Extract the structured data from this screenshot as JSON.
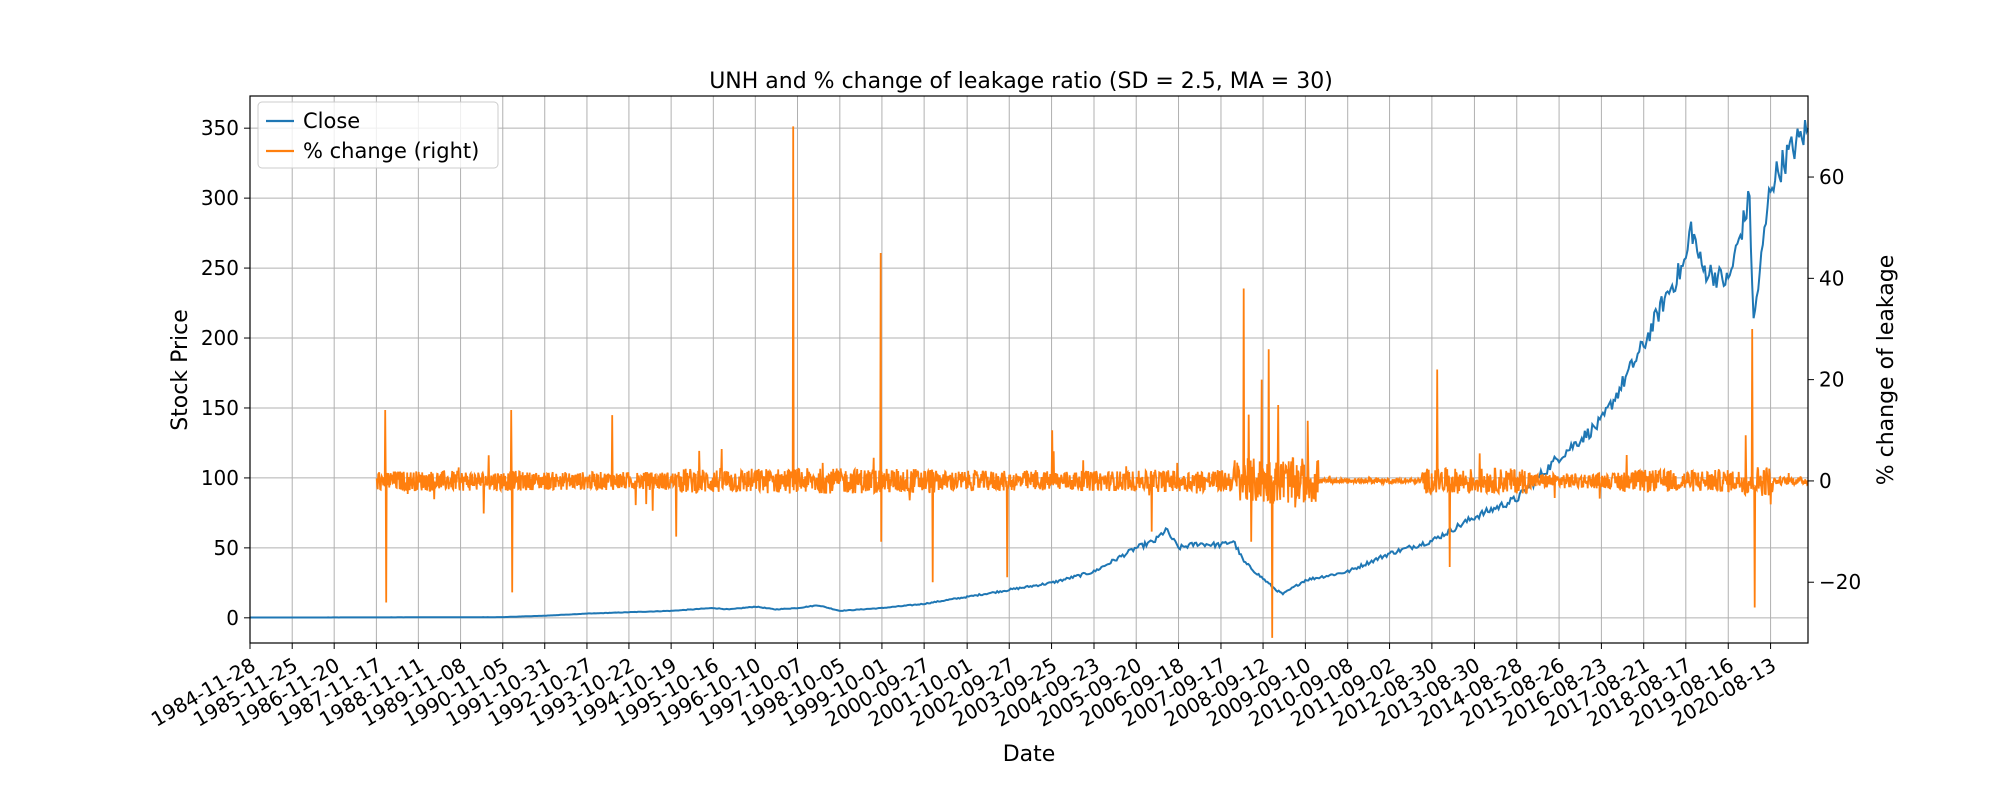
{
  "chart_data": {
    "type": "line",
    "title": "UNH and % change of leakage ratio (SD = 2.5, MA = 30)",
    "xlabel": "Date",
    "ylabel": "Stock Price",
    "ylabel_right": "% change of leakage",
    "grid": true,
    "legend_position": "top-left",
    "x_ticks": [
      "1984-11-28",
      "1985-11-25",
      "1986-11-20",
      "1987-11-17",
      "1988-11-11",
      "1989-11-08",
      "1990-11-05",
      "1991-10-31",
      "1992-10-27",
      "1993-10-22",
      "1994-10-19",
      "1995-10-16",
      "1996-10-10",
      "1997-10-07",
      "1998-10-05",
      "1999-10-01",
      "2000-09-27",
      "2001-10-01",
      "2002-09-27",
      "2003-09-25",
      "2004-09-23",
      "2005-09-20",
      "2006-09-18",
      "2007-09-17",
      "2008-09-12",
      "2009-09-10",
      "2010-09-08",
      "2011-09-02",
      "2012-08-30",
      "2013-08-30",
      "2014-08-28",
      "2015-08-26",
      "2016-08-23",
      "2017-08-21",
      "2018-08-17",
      "2019-08-16",
      "2020-08-13"
    ],
    "xlim": [
      "1984-11-28",
      "2021-06-30"
    ],
    "ylim": [
      -18,
      373
    ],
    "y_ticks": [
      0,
      50,
      100,
      150,
      200,
      250,
      300,
      350
    ],
    "ylim_right": [
      -32,
      76
    ],
    "y_ticks_right": [
      -20,
      0,
      20,
      40,
      60
    ],
    "series": [
      {
        "name": "Close",
        "axis": "left",
        "color": "#1f77b4",
        "points": [
          [
            "1984-11-28",
            0.2
          ],
          [
            "1987-11-17",
            0.3
          ],
          [
            "1990-11-05",
            0.5
          ],
          [
            "1991-10-31",
            1.5
          ],
          [
            "1992-10-27",
            3
          ],
          [
            "1993-10-22",
            4
          ],
          [
            "1994-10-19",
            5
          ],
          [
            "1995-10-16",
            7
          ],
          [
            "1996-03-01",
            6
          ],
          [
            "1996-10-10",
            8
          ],
          [
            "1997-04-01",
            6
          ],
          [
            "1997-10-07",
            7
          ],
          [
            "1998-04-01",
            9
          ],
          [
            "1998-10-05",
            5
          ],
          [
            "1999-10-01",
            7
          ],
          [
            "2000-09-27",
            10
          ],
          [
            "2001-10-01",
            15
          ],
          [
            "2002-09-27",
            20
          ],
          [
            "2003-09-25",
            25
          ],
          [
            "2004-09-23",
            33
          ],
          [
            "2005-09-20",
            50
          ],
          [
            "2006-03-01",
            55
          ],
          [
            "2006-06-01",
            63
          ],
          [
            "2006-09-18",
            50
          ],
          [
            "2007-03-01",
            53
          ],
          [
            "2007-09-17",
            52
          ],
          [
            "2008-01-01",
            55
          ],
          [
            "2008-04-01",
            40
          ],
          [
            "2008-09-12",
            28
          ],
          [
            "2009-01-01",
            20
          ],
          [
            "2009-03-01",
            17
          ],
          [
            "2009-09-10",
            27
          ],
          [
            "2010-09-08",
            33
          ],
          [
            "2011-09-02",
            46
          ],
          [
            "2012-08-30",
            55
          ],
          [
            "2013-08-30",
            72
          ],
          [
            "2014-08-28",
            85
          ],
          [
            "2015-08-26",
            115
          ],
          [
            "2016-08-23",
            140
          ],
          [
            "2017-08-21",
            195
          ],
          [
            "2018-03-01",
            230
          ],
          [
            "2018-08-17",
            255
          ],
          [
            "2018-10-01",
            280
          ],
          [
            "2019-01-01",
            250
          ],
          [
            "2019-08-16",
            240
          ],
          [
            "2020-02-15",
            300
          ],
          [
            "2020-03-20",
            210
          ],
          [
            "2020-08-13",
            310
          ],
          [
            "2021-01-01",
            330
          ],
          [
            "2021-06-30",
            350
          ]
        ]
      },
      {
        "name": "% change (right)",
        "axis": "right",
        "color": "#ff7f0e",
        "start": "1987-11-20",
        "end": "2021-06-30",
        "baseline": 0,
        "spikes": [
          [
            "1988-02-01",
            14
          ],
          [
            "1988-02-10",
            -24
          ],
          [
            "1991-01-15",
            14
          ],
          [
            "1991-01-25",
            -22
          ],
          [
            "1993-06-01",
            13
          ],
          [
            "1994-12-01",
            -11
          ],
          [
            "1997-09-01",
            70
          ],
          [
            "1999-09-20",
            45
          ],
          [
            "1999-09-25",
            -12
          ],
          [
            "2000-12-10",
            -20
          ],
          [
            "2002-09-10",
            -19
          ],
          [
            "2003-10-01",
            10
          ],
          [
            "2006-02-01",
            -10
          ],
          [
            "2008-04-01",
            38
          ],
          [
            "2008-06-01",
            -12
          ],
          [
            "2008-09-01",
            20
          ],
          [
            "2008-11-01",
            26
          ],
          [
            "2008-12-01",
            -31
          ],
          [
            "2009-01-20",
            15
          ],
          [
            "2012-10-15",
            22
          ],
          [
            "2013-02-01",
            -17
          ],
          [
            "2020-01-15",
            9
          ],
          [
            "2020-03-10",
            30
          ],
          [
            "2020-04-01",
            -25
          ]
        ],
        "noise_periods": [
          [
            "1987-11-20",
            "1991-06-01",
            2.0
          ],
          [
            "1991-06-01",
            "1994-12-31",
            1.8
          ],
          [
            "1994-12-31",
            "2000-12-31",
            2.5
          ],
          [
            "2000-12-31",
            "2005-12-31",
            2.0
          ],
          [
            "2005-12-31",
            "2008-01-01",
            2.2
          ],
          [
            "2008-01-01",
            "2009-12-31",
            4.5
          ],
          [
            "2009-12-31",
            "2012-06-01",
            0.5
          ],
          [
            "2012-06-01",
            "2014-12-31",
            2.5
          ],
          [
            "2014-12-31",
            "2016-12-31",
            1.5
          ],
          [
            "2016-12-31",
            "2019-12-31",
            2.2
          ],
          [
            "2019-12-31",
            "2020-09-01",
            3.0
          ],
          [
            "2020-09-01",
            "2021-06-30",
            0.8
          ]
        ]
      }
    ]
  }
}
